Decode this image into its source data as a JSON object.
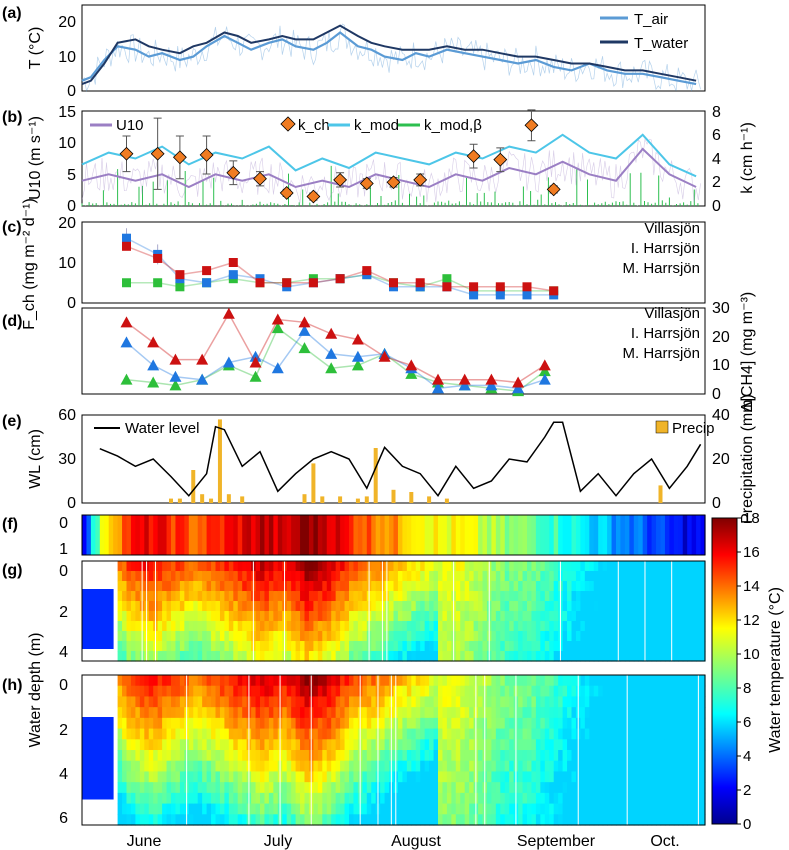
{
  "colors": {
    "t_air": "#5b9bd5",
    "t_water": "#1f3864",
    "u10": "#9b7fc4",
    "k_ch": "#f07c22",
    "k_mod": "#4dc6e8",
    "k_mod_beta": "#2dbf4f",
    "villasjon": "#2dbf3a",
    "i_harrsjon": "#1f77e0",
    "m_harrsjon": "#cc1111",
    "water_level": "#000000",
    "precip": "#f0b429"
  },
  "months": [
    "June",
    "July",
    "August",
    "September",
    "Oct."
  ],
  "colorbar": {
    "label": "Water temperature (°C)",
    "ticks": [
      "0",
      "2",
      "4",
      "6",
      "8",
      "10",
      "12",
      "14",
      "16",
      "18"
    ]
  },
  "chart_data": [
    {
      "panel": "(a)",
      "type": "line",
      "ylabel": "T (°C)",
      "ylim": [
        0,
        25
      ],
      "yticks": [
        "0",
        "10",
        "20"
      ],
      "legend": [
        "T_air",
        "T_water"
      ],
      "legend_placement": "top-right",
      "series": [
        {
          "name": "T_air",
          "x": [
            0,
            2,
            5,
            8,
            12,
            15,
            18,
            22,
            25,
            28,
            32,
            35,
            38,
            42,
            45,
            48,
            52,
            55,
            58,
            62,
            65,
            68,
            72,
            75,
            78,
            82,
            86,
            90,
            94,
            98,
            102,
            106,
            110,
            114,
            118,
            122,
            126,
            130,
            134,
            138
          ],
          "y": [
            3,
            4,
            9,
            13,
            12,
            10,
            11,
            9,
            10,
            13,
            16,
            14,
            12,
            14,
            15,
            13,
            12,
            14,
            17,
            13,
            12,
            10,
            9,
            11,
            10,
            12,
            11,
            10,
            9,
            8,
            9,
            7,
            6,
            8,
            6,
            5,
            5,
            4,
            3,
            2
          ]
        },
        {
          "name": "T_water",
          "x": [
            0,
            2,
            5,
            8,
            12,
            15,
            18,
            22,
            25,
            28,
            32,
            35,
            38,
            42,
            45,
            48,
            52,
            55,
            58,
            62,
            65,
            68,
            72,
            75,
            78,
            82,
            86,
            90,
            94,
            98,
            102,
            106,
            110,
            114,
            118,
            122,
            126,
            130,
            134,
            138
          ],
          "y": [
            2,
            3,
            8,
            14,
            15,
            13,
            12,
            11,
            13,
            14,
            17,
            16,
            14,
            15,
            16,
            15,
            15,
            17,
            19,
            16,
            14,
            13,
            12,
            12,
            12,
            13,
            12,
            12,
            11,
            10,
            10,
            9,
            8,
            8,
            7,
            6,
            6,
            5,
            4,
            3
          ]
        }
      ]
    },
    {
      "panel": "(b)",
      "type": "line",
      "ylabel": "U10 (m s⁻¹)",
      "ylim": [
        0,
        15
      ],
      "yticks": [
        "0",
        "5",
        "10",
        "15"
      ],
      "ylabel_right": "k (cm h⁻¹)",
      "ylim_right": [
        0,
        8
      ],
      "yticks_right": [
        "0",
        "2",
        "4",
        "6",
        "8"
      ],
      "legend": [
        "U10",
        "k_ch",
        "k_mod",
        "k_mod,β"
      ],
      "legend_placement": "top",
      "series": [
        {
          "name": "U10",
          "x": [
            0,
            6,
            12,
            18,
            24,
            30,
            36,
            42,
            48,
            54,
            60,
            66,
            72,
            78,
            84,
            90,
            96,
            102,
            108,
            114,
            120,
            126,
            132,
            138
          ],
          "y": [
            4,
            5,
            4,
            5,
            3,
            5,
            4,
            5,
            3,
            4,
            3,
            5,
            4,
            3,
            5,
            4,
            6,
            5,
            7,
            5,
            4,
            9,
            5,
            3
          ]
        },
        {
          "name": "k_mod",
          "x": [
            0,
            6,
            12,
            18,
            24,
            30,
            36,
            42,
            48,
            54,
            60,
            66,
            72,
            78,
            84,
            90,
            96,
            102,
            108,
            114,
            120,
            126,
            132,
            138
          ],
          "y": [
            3.5,
            4.5,
            4,
            5,
            3.5,
            4.5,
            4,
            5,
            3,
            4,
            3.2,
            4.5,
            4,
            3.5,
            4.5,
            4,
            5,
            4.5,
            6,
            4.5,
            4,
            6,
            3.5,
            2.5
          ]
        },
        {
          "name": "k_ch",
          "x": [
            10,
            17,
            22,
            28,
            34,
            40,
            46,
            52,
            58,
            64,
            70,
            76,
            88,
            94,
            101,
            106
          ],
          "y": [
            4.4,
            4.4,
            4.1,
            4.3,
            2.8,
            2.3,
            1.1,
            0.8,
            2.2,
            1.9,
            2.0,
            2.2,
            4.2,
            3.9,
            6.8,
            1.4
          ],
          "err": [
            1.5,
            3,
            1.8,
            1.6,
            1,
            0.6,
            0.3,
            0.3,
            0.6,
            0.4,
            0.4,
            0.5,
            1,
            1,
            1.3,
            0.3
          ]
        }
      ]
    },
    {
      "panel": "(c)",
      "type": "scatter",
      "ylabel": "F_ch (mg m⁻² d⁻¹)",
      "ylim": [
        0,
        20
      ],
      "yticks": [
        "0",
        "10",
        "20"
      ],
      "legend": [
        "Villasjön",
        "I. Harrsjön",
        "M. Harrsjön"
      ],
      "legend_placement": "right",
      "x": [
        10,
        17,
        22,
        28,
        34,
        40,
        46,
        52,
        58,
        64,
        70,
        76,
        82,
        88,
        94,
        100,
        106
      ],
      "series": [
        {
          "name": "Villasjön",
          "values": [
            5,
            5,
            4,
            5,
            6,
            5,
            5,
            6,
            6,
            7,
            5,
            4,
            6,
            3,
            3,
            3,
            3
          ]
        },
        {
          "name": "I. Harrsjön",
          "values": [
            16,
            12,
            6,
            5,
            7,
            6,
            4,
            5,
            6,
            7,
            4,
            4,
            4,
            2,
            2,
            2,
            2
          ]
        },
        {
          "name": "M. Harrsjön",
          "values": [
            14,
            11,
            7,
            8,
            10,
            5,
            5,
            5,
            6,
            8,
            5,
            5,
            4,
            4,
            4,
            4,
            3
          ]
        }
      ]
    },
    {
      "panel": "(d)",
      "type": "line",
      "ylabel_right": "Δ[CH4] (mg m⁻³)",
      "ylim_right": [
        0,
        30
      ],
      "yticks_right": [
        "0",
        "10",
        "20",
        "30"
      ],
      "legend": [
        "Villasjön",
        "I. Harrsjön",
        "M. Harrsjön"
      ],
      "legend_placement": "right",
      "x": [
        10,
        16,
        21,
        27,
        33,
        39,
        44,
        50,
        56,
        62,
        68,
        74,
        80,
        86,
        92,
        98,
        104
      ],
      "series": [
        {
          "name": "Villasjön",
          "values": [
            5,
            4,
            3,
            5,
            10,
            6,
            23,
            16,
            9,
            10,
            14,
            7,
            4,
            3,
            2,
            1,
            8
          ]
        },
        {
          "name": "I. Harrsjön",
          "values": [
            18,
            10,
            6,
            5,
            11,
            13,
            9,
            22,
            14,
            13,
            14,
            9,
            2,
            3,
            3,
            2,
            5
          ]
        },
        {
          "name": "M. Harrsjön",
          "values": [
            25,
            18,
            12,
            12,
            28,
            11,
            26,
            25,
            21,
            19,
            13,
            10,
            5,
            5,
            5,
            4,
            10
          ]
        }
      ]
    },
    {
      "panel": "(e)",
      "type": "line",
      "ylabel": "WL (cm)",
      "ylim": [
        0,
        60
      ],
      "yticks": [
        "0",
        "30",
        "60"
      ],
      "ylabel_right": "Precipitation (mm)",
      "ylim_right": [
        0,
        40
      ],
      "yticks_right": [
        "0",
        "20",
        "40"
      ],
      "legend": [
        "Water level",
        "Precip"
      ],
      "series": [
        {
          "name": "Water level",
          "x": [
            4,
            8,
            12,
            16,
            20,
            24,
            28,
            30,
            32,
            36,
            40,
            44,
            48,
            52,
            56,
            60,
            64,
            68,
            72,
            76,
            80,
            84,
            88,
            92,
            96,
            100,
            104,
            106,
            108,
            112,
            116,
            120,
            124,
            128,
            132,
            136,
            139
          ],
          "y": [
            37,
            32,
            25,
            30,
            18,
            5,
            20,
            52,
            50,
            25,
            35,
            8,
            20,
            30,
            35,
            30,
            10,
            38,
            25,
            20,
            5,
            25,
            10,
            15,
            30,
            28,
            45,
            55,
            55,
            8,
            20,
            5,
            20,
            30,
            10,
            25,
            40
          ]
        },
        {
          "name": "Precip",
          "x": [
            20,
            22,
            25,
            27,
            29,
            31,
            33,
            36,
            50,
            52,
            54,
            58,
            62,
            64,
            66,
            70,
            74,
            78,
            82,
            130
          ],
          "values": [
            2,
            2,
            15,
            4,
            2,
            38,
            4,
            3,
            4,
            18,
            3,
            3,
            2,
            3,
            25,
            6,
            5,
            3,
            2,
            8
          ]
        }
      ]
    },
    {
      "panel": "(f)",
      "type": "heatmap",
      "yticks": [
        "0",
        "1"
      ],
      "surface_temperature_x": [
        0,
        5,
        10,
        15,
        20,
        25,
        30,
        35,
        40,
        45,
        50,
        55,
        60,
        65,
        70,
        75,
        80,
        85,
        90,
        95,
        100,
        105,
        110,
        115,
        120,
        125,
        130,
        135,
        139
      ],
      "surface_temperature": [
        3,
        12,
        15,
        16,
        15,
        14,
        15,
        16,
        17,
        16,
        18,
        17,
        15,
        14,
        13,
        12,
        11,
        11,
        10,
        9,
        9,
        8,
        7,
        6,
        5,
        4,
        3,
        2,
        2
      ]
    },
    {
      "panel": "(g)",
      "type": "heatmap",
      "ylabel": "Water depth (m)",
      "yticks": [
        "0",
        "2",
        "4"
      ],
      "depth_range": [
        0,
        4.5
      ]
    },
    {
      "panel": "(h)",
      "type": "heatmap",
      "yticks": [
        "0",
        "2",
        "4",
        "6"
      ],
      "depth_range": [
        0,
        6.5
      ]
    }
  ]
}
